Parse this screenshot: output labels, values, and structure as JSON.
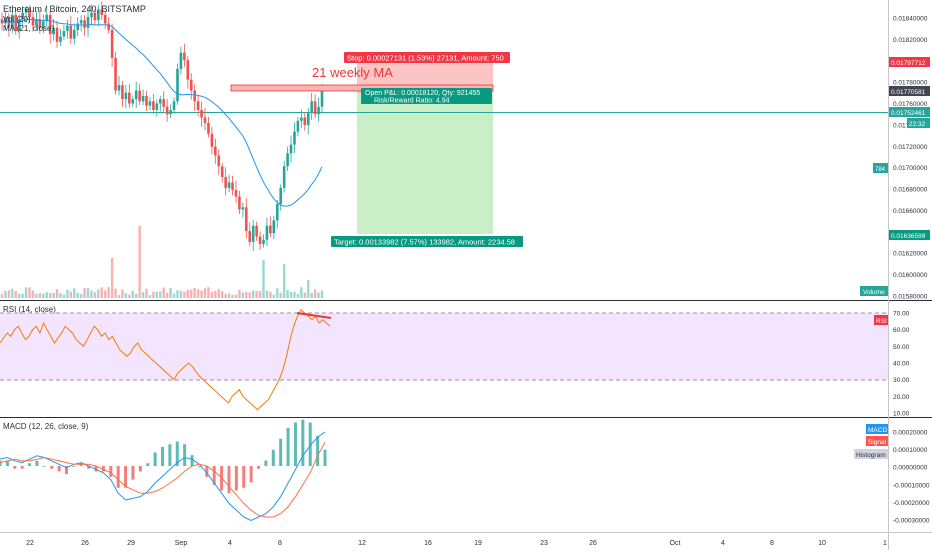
{
  "header": {
    "symbol_title": "Ethereum / Bitcoin, 240, BITSTAMP",
    "volume_indicator": "Vol (20)",
    "ma_indicator": "MA (21, close)"
  },
  "annotation": {
    "text": "21 weekly MA",
    "color": "#e53935"
  },
  "position": {
    "stop_label": "Stop: 0.00027131 (1.53%) 27131, Amount: 750",
    "open_label": "Open P&L: 0.00018120, Qty: 921455",
    "risk_label": "Risk/Reward Ratio: 4.94",
    "target_label": "Target: 0.00133982 (7.57%) 133982, Amount: 2234.58"
  },
  "price_axis": {
    "ticks": [
      "0.01840000",
      "0.01820000",
      "0.01800000",
      "0.01780000",
      "0.01760000",
      "0.01740000",
      "0.01720000",
      "0.01700000",
      "0.01680000",
      "0.01660000",
      "0.01640000",
      "0.01620000",
      "0.01600000",
      "0.01580000"
    ],
    "stop_level_label": "0.01797712",
    "last_price_label": "0.01770581",
    "entry_label": "0.01752461",
    "countdown_label": "22:32",
    "target_level_label": "0.01636599",
    "ma_badge": "784",
    "volume_badge": "Volume"
  },
  "rsi": {
    "title": "RSI (14, close)",
    "badge": "RSI",
    "ticks": [
      "70.00",
      "60.00",
      "50.00",
      "40.00",
      "30.00",
      "20.00",
      "10.00"
    ]
  },
  "macd": {
    "title": "MACD (12, 26, close, 9)",
    "ticks": [
      "0.00020000",
      "0.00010000",
      "0.00000000",
      "-0.00010000",
      "-0.00020000",
      "-0.00030000"
    ],
    "legend_macd": "MACD",
    "legend_signal": "Signal",
    "legend_histogram": "Histogram"
  },
  "time_axis": {
    "labels": [
      "22",
      "26",
      "29",
      "Sep",
      "4",
      "8",
      "12",
      "16",
      "19",
      "23",
      "26",
      "Oct",
      "4",
      "8",
      "10",
      "1"
    ]
  },
  "colors": {
    "up": "#26a69a",
    "down": "#ef5350",
    "ma_line": "#2196f3",
    "rsi_line": "#f57c00",
    "rsi_band": "#f3e5ff",
    "macd_line": "#2196f3",
    "signal_line": "#ff7043",
    "stop_zone": "#fcc4c4",
    "target_zone": "#c8efc6",
    "entry_line": "#26a69a"
  },
  "chart_data": [
    {
      "type": "candlestick",
      "title": "Ethereum / Bitcoin, 240, BITSTAMP",
      "ylim": [
        0.0158,
        0.0185
      ],
      "x_labels": [
        "22",
        "26",
        "29",
        "Sep",
        "4",
        "8",
        "12",
        "16",
        "19",
        "23",
        "26",
        "Oct",
        "4",
        "8",
        "10",
        "1"
      ],
      "ohlc_close": [
        0.01832,
        0.01838,
        0.01828,
        0.0184,
        0.01825,
        0.01836,
        0.01842,
        0.01845,
        0.01838,
        0.0183,
        0.01836,
        0.01828,
        0.01834,
        0.0184,
        0.01822,
        0.01828,
        0.01815,
        0.0182,
        0.01825,
        0.0183,
        0.01818,
        0.01826,
        0.01832,
        0.01835,
        0.01828,
        0.01838,
        0.01842,
        0.01835,
        0.01845,
        0.0184,
        0.01832,
        0.01826,
        0.018,
        0.0177,
        0.01775,
        0.01762,
        0.01768,
        0.01758,
        0.01762,
        0.0177,
        0.0176,
        0.01765,
        0.01756,
        0.0176,
        0.01752,
        0.01758,
        0.01762,
        0.01755,
        0.01748,
        0.01752,
        0.0176,
        0.0179,
        0.01805,
        0.01798,
        0.0178,
        0.0177,
        0.0176,
        0.01752,
        0.01745,
        0.0174,
        0.0173,
        0.01718,
        0.0171,
        0.017,
        0.0169,
        0.0168,
        0.01685,
        0.01678,
        0.01672,
        0.0166,
        0.01662,
        0.0164,
        0.0163,
        0.01645,
        0.01635,
        0.01628,
        0.01632,
        0.01645,
        0.01638,
        0.0165,
        0.01665,
        0.0168,
        0.017,
        0.01712,
        0.0172,
        0.01732,
        0.01742,
        0.01745,
        0.01738,
        0.0175,
        0.0176,
        0.01748,
        0.01755,
        0.01771
      ],
      "series": [
        {
          "name": "MA (21, close)",
          "type": "line"
        },
        {
          "name": "Vol (20)",
          "type": "bar"
        }
      ],
      "annotations": [
        "21 weekly MA"
      ]
    },
    {
      "type": "line",
      "title": "RSI (14, close)",
      "ylim": [
        10,
        75
      ],
      "band": [
        30,
        70
      ],
      "values": [
        52,
        55,
        58,
        56,
        60,
        62,
        58,
        54,
        56,
        60,
        62,
        58,
        64,
        60,
        56,
        52,
        55,
        58,
        62,
        60,
        58,
        54,
        52,
        50,
        54,
        58,
        62,
        60,
        56,
        58,
        54,
        56,
        52,
        48,
        46,
        44,
        46,
        50,
        52,
        48,
        46,
        44,
        42,
        40,
        38,
        36,
        34,
        32,
        30,
        34,
        36,
        38,
        40,
        38,
        35,
        32,
        30,
        28,
        26,
        24,
        22,
        20,
        18,
        16,
        20,
        22,
        24,
        20,
        18,
        16,
        14,
        12,
        14,
        16,
        18,
        22,
        26,
        30,
        36,
        44,
        54,
        62,
        68,
        72,
        70,
        68,
        66,
        68,
        64,
        66,
        64,
        62
      ],
      "annotations": [
        "bearish divergence line"
      ]
    },
    {
      "type": "line",
      "title": "MACD (12, 26, close, 9)",
      "ylim": [
        -0.00035,
        0.00022
      ],
      "series": [
        {
          "name": "MACD",
          "values": [
            4e-05,
            5e-05,
            3e-05,
            2e-05,
            4e-05,
            6e-05,
            5e-05,
            3e-05,
            1e-05,
            -1e-05,
            1e-05,
            2e-05,
            0.0,
            -2e-05,
            -4e-05,
            -8e-05,
            -0.00016,
            -0.0002,
            -0.00019,
            -0.00018,
            -0.00015,
            -0.0001,
            -6e-05,
            -2e-05,
            2e-05,
            5e-05,
            4e-05,
            1e-05,
            -4e-05,
            -0.0001,
            -0.00016,
            -0.00022,
            -0.00026,
            -0.0003,
            -0.00032,
            -0.0003,
            -0.00028,
            -0.00024,
            -0.00018,
            -0.0001,
            -2e-05,
            6e-05,
            0.00012,
            0.00017,
            0.0002
          ]
        },
        {
          "name": "Signal",
          "values": [
            2e-05,
            3e-05,
            4e-05,
            3e-05,
            3e-05,
            4e-05,
            5e-05,
            4e-05,
            3e-05,
            2e-05,
            1e-05,
            1e-05,
            1e-05,
            0.0,
            -2e-05,
            -4e-05,
            -8e-05,
            -0.00012,
            -0.00014,
            -0.00016,
            -0.00016,
            -0.00015,
            -0.00013,
            -0.0001,
            -7e-05,
            -3e-05,
            0.0,
            1e-05,
            0.0,
            -3e-05,
            -7e-05,
            -0.00012,
            -0.00017,
            -0.00022,
            -0.00026,
            -0.00029,
            -0.0003,
            -0.0003,
            -0.00028,
            -0.00024,
            -0.00018,
            -0.00011,
            -4e-05,
            6e-05,
            0.00014
          ]
        },
        {
          "name": "Histogram",
          "type": "bar"
        }
      ]
    }
  ]
}
